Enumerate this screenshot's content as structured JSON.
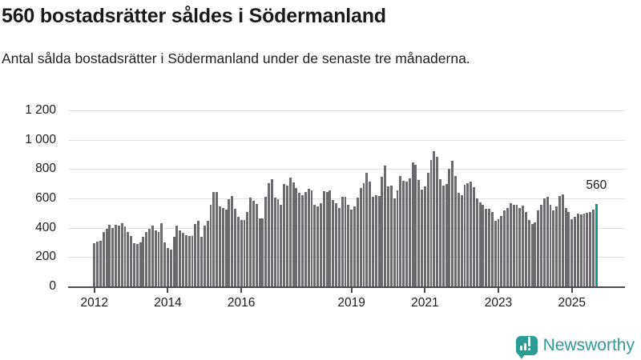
{
  "header": {
    "title": "560 bostadsrätter såldes i Södermanland",
    "subtitle": "Antal sålda bostadsrätter i Södermanland under de senaste tre månaderna."
  },
  "chart_data": {
    "type": "bar",
    "title": "560 bostadsrätter såldes i Södermanland",
    "subtitle": "Antal sålda bostadsrätter i Södermanland under de senaste tre månaderna.",
    "xlabel": "",
    "ylabel": "",
    "ylim": [
      0,
      1200
    ],
    "grid": true,
    "bar_color": "#6c6a6e",
    "highlight_color": "#12988f",
    "start_month": "2012-01",
    "end_month": "2025-09",
    "values": [
      295,
      305,
      310,
      370,
      395,
      420,
      400,
      420,
      414,
      430,
      410,
      370,
      345,
      295,
      290,
      300,
      340,
      372,
      394,
      412,
      381,
      372,
      430,
      300,
      260,
      250,
      336,
      412,
      381,
      363,
      350,
      345,
      345,
      423,
      448,
      336,
      412,
      445,
      557,
      641,
      641,
      545,
      536,
      521,
      594,
      617,
      530,
      472,
      454,
      454,
      508,
      605,
      581,
      563,
      463,
      463,
      612,
      704,
      732,
      608,
      594,
      557,
      699,
      690,
      744,
      708,
      672,
      636,
      621,
      645,
      666,
      654,
      554,
      545,
      566,
      648,
      645,
      654,
      590,
      566,
      536,
      612,
      612,
      554,
      521,
      545,
      608,
      672,
      703,
      772,
      717,
      612,
      621,
      617,
      748,
      823,
      681,
      690,
      599,
      654,
      754,
      721,
      714,
      739,
      844,
      830,
      726,
      659,
      684,
      772,
      862,
      920,
      881,
      732,
      690,
      699,
      803,
      859,
      754,
      636,
      621,
      694,
      703,
      712,
      677,
      599,
      572,
      554,
      530,
      527,
      508,
      448,
      459,
      481,
      517,
      536,
      568,
      554,
      557,
      536,
      550,
      508,
      454,
      423,
      439,
      517,
      557,
      599,
      612,
      554,
      520,
      545,
      617,
      630,
      536,
      508,
      459,
      477,
      496,
      490,
      496,
      503,
      508,
      521,
      560
    ],
    "highlight": {
      "index": 164,
      "label": "560",
      "value": 560
    },
    "y_ticks": [
      0,
      200,
      400,
      600,
      800,
      1000,
      1200
    ],
    "y_tick_labels": [
      "0",
      "200",
      "400",
      "600",
      "800",
      "1 000",
      "1 200"
    ],
    "x_ticks": [
      {
        "label": "2012",
        "month_index": 0
      },
      {
        "label": "2014",
        "month_index": 24
      },
      {
        "label": "2016",
        "month_index": 48
      },
      {
        "label": "2019",
        "month_index": 84
      },
      {
        "label": "2021",
        "month_index": 108
      },
      {
        "label": "2023",
        "month_index": 132
      },
      {
        "label": "2025",
        "month_index": 156
      }
    ],
    "legend": []
  },
  "footer": {
    "brand": "Newsworthy",
    "brand_color": "#2d9a93",
    "logo_icon": "bar-chart-speech-bubble-icon"
  }
}
